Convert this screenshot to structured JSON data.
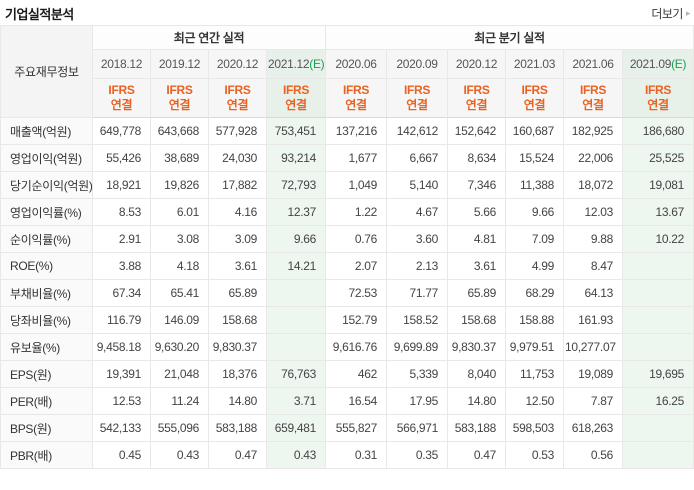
{
  "page": {
    "title": "기업실적분석",
    "more_label": "더보기",
    "more_arrow": "▸"
  },
  "table": {
    "corner_label": "주요재무정보",
    "groups": [
      {
        "label": "최근 연간 실적",
        "span": 4
      },
      {
        "label": "최근 분기 실적",
        "span": 6
      }
    ],
    "ifrs": {
      "line1": "IFRS",
      "line2": "연결"
    },
    "columns": [
      {
        "label": "2018.12",
        "suffix": "",
        "estimate": false
      },
      {
        "label": "2019.12",
        "suffix": "",
        "estimate": false
      },
      {
        "label": "2020.12",
        "suffix": "",
        "estimate": false
      },
      {
        "label": "2021.12",
        "suffix": "(E)",
        "estimate": true
      },
      {
        "label": "2020.06",
        "suffix": "",
        "estimate": false
      },
      {
        "label": "2020.09",
        "suffix": "",
        "estimate": false
      },
      {
        "label": "2020.12",
        "suffix": "",
        "estimate": false
      },
      {
        "label": "2021.03",
        "suffix": "",
        "estimate": false
      },
      {
        "label": "2021.06",
        "suffix": "",
        "estimate": false
      },
      {
        "label": "2021.09",
        "suffix": "(E)",
        "estimate": true
      }
    ],
    "rows": [
      {
        "label": "매출액(억원)",
        "group_start": false,
        "values": [
          "649,778",
          "643,668",
          "577,928",
          "753,451",
          "137,216",
          "142,612",
          "152,642",
          "160,687",
          "182,925",
          "186,680"
        ]
      },
      {
        "label": "영업이익(억원)",
        "group_start": false,
        "values": [
          "55,426",
          "38,689",
          "24,030",
          "93,214",
          "1,677",
          "6,667",
          "8,634",
          "15,524",
          "22,006",
          "25,525"
        ]
      },
      {
        "label": "당기순이익(억원)",
        "group_start": false,
        "values": [
          "18,921",
          "19,826",
          "17,882",
          "72,793",
          "1,049",
          "5,140",
          "7,346",
          "11,388",
          "18,072",
          "19,081"
        ]
      },
      {
        "label": "영업이익률(%)",
        "group_start": true,
        "values": [
          "8.53",
          "6.01",
          "4.16",
          "12.37",
          "1.22",
          "4.67",
          "5.66",
          "9.66",
          "12.03",
          "13.67"
        ]
      },
      {
        "label": "순이익률(%)",
        "group_start": false,
        "values": [
          "2.91",
          "3.08",
          "3.09",
          "9.66",
          "0.76",
          "3.60",
          "4.81",
          "7.09",
          "9.88",
          "10.22"
        ]
      },
      {
        "label": "ROE(%)",
        "group_start": false,
        "values": [
          "3.88",
          "4.18",
          "3.61",
          "14.21",
          "2.07",
          "2.13",
          "3.61",
          "4.99",
          "8.47",
          ""
        ]
      },
      {
        "label": "부채비율(%)",
        "group_start": true,
        "values": [
          "67.34",
          "65.41",
          "65.89",
          "",
          "72.53",
          "71.77",
          "65.89",
          "68.29",
          "64.13",
          ""
        ]
      },
      {
        "label": "당좌비율(%)",
        "group_start": false,
        "values": [
          "116.79",
          "146.09",
          "158.68",
          "",
          "152.79",
          "158.52",
          "158.68",
          "158.88",
          "161.93",
          ""
        ]
      },
      {
        "label": "유보율(%)",
        "group_start": false,
        "values": [
          "9,458.18",
          "9,630.20",
          "9,830.37",
          "",
          "9,616.76",
          "9,699.89",
          "9,830.37",
          "9,979.51",
          "10,277.07",
          ""
        ]
      },
      {
        "label": "EPS(원)",
        "group_start": true,
        "values": [
          "19,391",
          "21,048",
          "18,376",
          "76,763",
          "462",
          "5,339",
          "8,040",
          "11,753",
          "19,089",
          "19,695"
        ]
      },
      {
        "label": "PER(배)",
        "group_start": false,
        "values": [
          "12.53",
          "11.24",
          "14.80",
          "3.71",
          "16.54",
          "17.95",
          "14.80",
          "12.50",
          "7.87",
          "16.25"
        ]
      },
      {
        "label": "BPS(원)",
        "group_start": false,
        "values": [
          "542,133",
          "555,096",
          "583,188",
          "659,481",
          "555,827",
          "566,971",
          "583,188",
          "598,503",
          "618,263",
          ""
        ]
      },
      {
        "label": "PBR(배)",
        "group_start": false,
        "values": [
          "0.45",
          "0.43",
          "0.47",
          "0.43",
          "0.31",
          "0.35",
          "0.47",
          "0.53",
          "0.56",
          ""
        ]
      }
    ]
  },
  "colors": {
    "accent_orange": "#eb6120",
    "estimate_green": "#17a254",
    "estimate_cell_bg": "#eef6f0",
    "estimate_header_bg": "#e7f1ea"
  }
}
